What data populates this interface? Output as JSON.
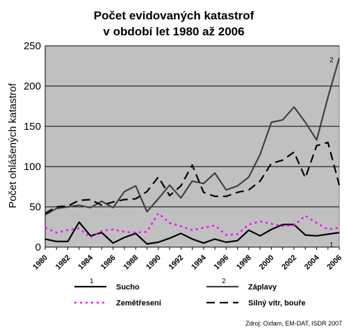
{
  "chart_data": {
    "type": "line",
    "title_lines": [
      "Počet evidovaných katastrof",
      "v období let 1980 až 2006"
    ],
    "ylabel": "Počet ohlášených katastrof",
    "xlabel": "",
    "x": [
      1980,
      1981,
      1982,
      1983,
      1984,
      1985,
      1986,
      1987,
      1988,
      1989,
      1990,
      1991,
      1992,
      1993,
      1994,
      1995,
      1996,
      1997,
      1998,
      1999,
      2000,
      2001,
      2002,
      2003,
      2004,
      2005,
      2006
    ],
    "xlim": [
      1980,
      2006
    ],
    "ylim": [
      0,
      250
    ],
    "yticks": [
      0,
      50,
      100,
      150,
      200,
      250
    ],
    "xticks": [
      1980,
      1982,
      1984,
      1986,
      1988,
      1990,
      1992,
      1994,
      1996,
      1998,
      2000,
      2002,
      2004,
      2006
    ],
    "grid": true,
    "plot_background": "#c0c0c0",
    "series": [
      {
        "name": "Sucho",
        "marker": "1",
        "color": "#000000",
        "style": "solid",
        "values": [
          10,
          7,
          7,
          31,
          14,
          18,
          5,
          12,
          17,
          4,
          6,
          11,
          17,
          10,
          5,
          10,
          6,
          8,
          21,
          14,
          22,
          28,
          28,
          15,
          14,
          16,
          18
        ]
      },
      {
        "name": "Zemětřesení",
        "marker": "",
        "color": "#ff00ff",
        "style": "dotted",
        "values": [
          24,
          18,
          21,
          23,
          12,
          20,
          22,
          19,
          18,
          19,
          42,
          30,
          26,
          21,
          24,
          27,
          15,
          16,
          28,
          32,
          29,
          26,
          27,
          39,
          30,
          22,
          24
        ]
      },
      {
        "name": "Záplavy",
        "marker": "2",
        "color": "#404040",
        "style": "solid",
        "values": [
          40,
          48,
          50,
          52,
          49,
          57,
          49,
          69,
          76,
          44,
          60,
          77,
          61,
          82,
          79,
          92,
          71,
          76,
          87,
          115,
          155,
          158,
          174,
          155,
          133,
          186,
          235
        ]
      },
      {
        "name": "Silný vítr, bouře",
        "marker": "",
        "color": "#000000",
        "style": "dashed",
        "values": [
          42,
          50,
          51,
          58,
          59,
          52,
          56,
          59,
          60,
          69,
          87,
          64,
          76,
          102,
          68,
          63,
          63,
          68,
          71,
          82,
          104,
          108,
          118,
          86,
          126,
          130,
          77
        ]
      }
    ]
  },
  "legend": {
    "items": [
      {
        "label": "Sucho",
        "marker": "1"
      },
      {
        "label": "Záplavy",
        "marker": "2"
      },
      {
        "label": "Zemětřesení",
        "marker": ""
      },
      {
        "label": "Silný vítr, bouře",
        "marker": ""
      }
    ]
  },
  "source": "Zdroj: Oxfam, EM-DAT, ISDR 2007"
}
